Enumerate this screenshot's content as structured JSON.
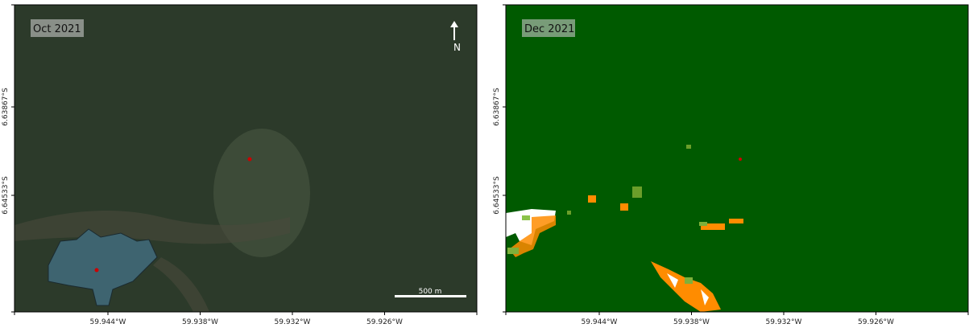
{
  "panels": [
    {
      "label": "Oct 2021",
      "north": "N",
      "scale_bar": "500 m",
      "x_ticks": [
        "59.944°W",
        "59.938°W",
        "59.932°W",
        "59.926°W"
      ],
      "y_ticks": [
        "6.63867°S",
        "6.64533°S"
      ]
    },
    {
      "label": "Dec 2021",
      "x_ticks": [
        "59.944°W",
        "59.938°W",
        "59.932°W",
        "59.926°W"
      ],
      "y_ticks": [
        "6.63867°S",
        "6.64533°S"
      ]
    }
  ]
}
